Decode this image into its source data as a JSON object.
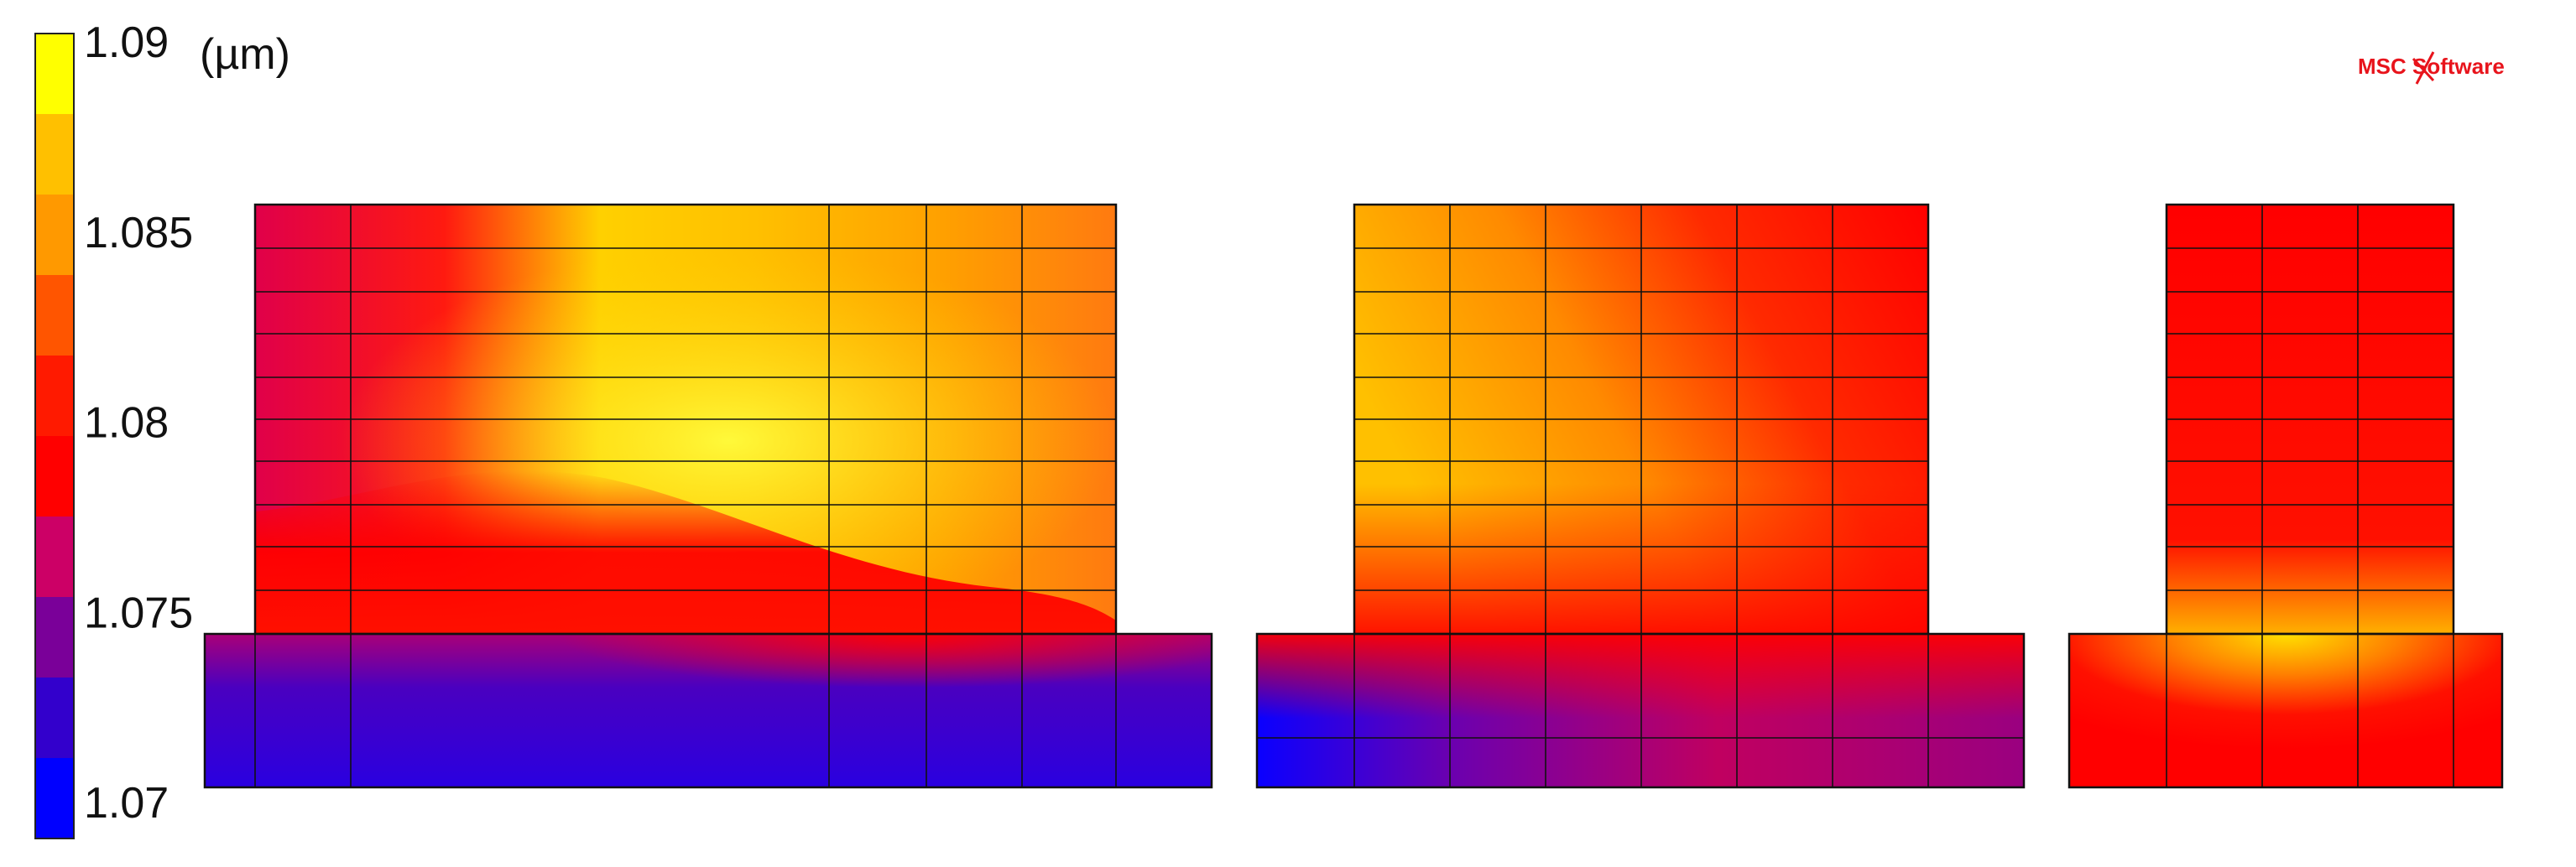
{
  "legend": {
    "unit": "(µm)",
    "colors": [
      "#0000ff",
      "#3300cc",
      "#7a0099",
      "#cc0066",
      "#ff0000",
      "#ff1a00",
      "#ff5500",
      "#ff9900",
      "#ffc000",
      "#ffff00"
    ],
    "labels": [
      {
        "text": "1.09",
        "value": 1.09
      },
      {
        "text": "1.085",
        "value": 1.085
      },
      {
        "text": "1.08",
        "value": 1.08
      },
      {
        "text": "1.075",
        "value": 1.075
      },
      {
        "text": "1.07",
        "value": 1.07
      }
    ]
  },
  "logo": {
    "text": "MSC Software"
  },
  "colors": {
    "mesh": "#111111",
    "background": "#ffffff",
    "logo": "#e8141c"
  }
}
